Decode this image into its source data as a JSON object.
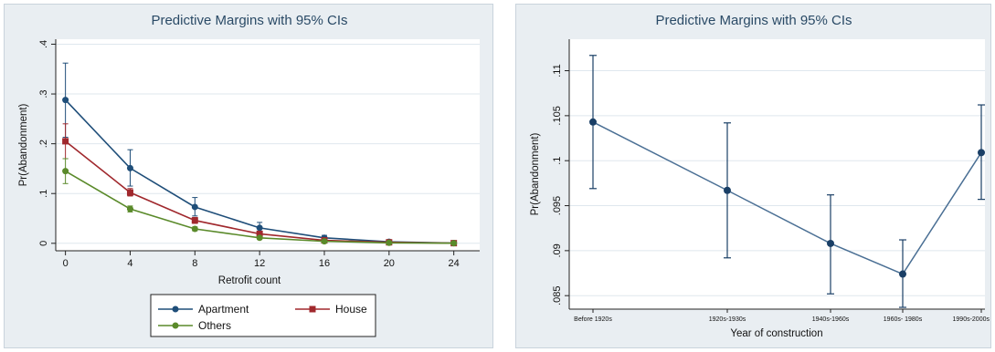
{
  "colors": {
    "panel_bg": "#e9eef2",
    "plot_bg": "#ffffff",
    "grid": "#dfe7ee",
    "apartment": "#1f4e79",
    "house": "#a0282d",
    "others": "#5a8a2a",
    "single": "#1a3f66"
  },
  "chart_data": [
    {
      "type": "line",
      "title": "Predictive Margins with 95%  CIs",
      "xlabel": "Retrofit count",
      "ylabel": "Pr(Abandonment)",
      "x": [
        0,
        4,
        8,
        12,
        16,
        20,
        24
      ],
      "x_tick_labels": [
        "0",
        "4",
        "8",
        "12",
        "16",
        "20",
        "24"
      ],
      "xlim": [
        -0.6,
        25.6
      ],
      "ylim": [
        -0.015,
        0.41
      ],
      "y_ticks": [
        0,
        0.1,
        0.2,
        0.3,
        0.4
      ],
      "y_tick_labels": [
        "0",
        ".1",
        ".2",
        ".3",
        ".4"
      ],
      "grid": true,
      "legend_position": "bottom",
      "series": [
        {
          "name": "Apartment",
          "color": "#1f4e79",
          "values": [
            0.288,
            0.151,
            0.073,
            0.031,
            0.011,
            0.003,
            0.0005
          ],
          "ci_low": [
            0.213,
            0.115,
            0.055,
            0.021,
            0.007,
            0.001,
            0.0
          ],
          "ci_high": [
            0.362,
            0.188,
            0.092,
            0.042,
            0.016,
            0.006,
            0.002
          ]
        },
        {
          "name": "House",
          "color": "#a0282d",
          "values": [
            0.205,
            0.102,
            0.046,
            0.019,
            0.006,
            0.002,
            0.0003
          ],
          "ci_low": [
            0.17,
            0.095,
            0.04,
            0.015,
            0.004,
            0.001,
            0.0
          ],
          "ci_high": [
            0.24,
            0.11,
            0.052,
            0.023,
            0.008,
            0.003,
            0.001
          ]
        },
        {
          "name": "Others",
          "color": "#5a8a2a",
          "values": [
            0.145,
            0.069,
            0.029,
            0.011,
            0.004,
            0.001,
            0.0002
          ],
          "ci_low": [
            0.12,
            0.063,
            0.025,
            0.008,
            0.002,
            0.0,
            0.0
          ],
          "ci_high": [
            0.17,
            0.075,
            0.033,
            0.014,
            0.006,
            0.002,
            0.001
          ]
        }
      ]
    },
    {
      "type": "line",
      "title": "Predictive Margins  with 95%  CIs",
      "xlabel": "Year of construction",
      "ylabel": "Pr(Abandonment)",
      "categories": [
        "Before 1920s",
        "1920s-1930s",
        "1940s-1960s",
        "1960s- 1980s",
        "1990s-2000s"
      ],
      "ylim": [
        0.0835,
        0.1135
      ],
      "y_ticks": [
        0.085,
        0.09,
        0.095,
        0.1,
        0.105,
        0.11
      ],
      "y_tick_labels": [
        ".085",
        ".09",
        ".095",
        ".1",
        ".105",
        ".11"
      ],
      "grid": true,
      "series": [
        {
          "color": "#1a3f66",
          "values": [
            0.1043,
            0.0967,
            0.0908,
            0.0874,
            0.1009
          ],
          "ci_low": [
            0.0969,
            0.0892,
            0.0852,
            0.0837,
            0.0957
          ],
          "ci_high": [
            0.1117,
            0.1042,
            0.0962,
            0.0912,
            0.1062
          ]
        }
      ]
    }
  ]
}
